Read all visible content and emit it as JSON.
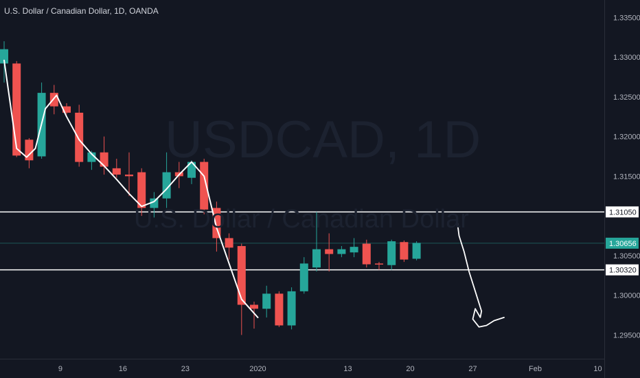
{
  "header": {
    "title": "U.S. Dollar / Canadian Dollar, 1D, OANDA",
    "watermark_symbol": "USDCAD, 1D",
    "watermark_name": "U.S. Dollar / Canadian Dollar"
  },
  "colors": {
    "background": "#131722",
    "up": "#26a69a",
    "down": "#ef5350",
    "text": "#b2b5be",
    "line": "#ffffff",
    "price_badge": "#26a69a"
  },
  "chart_data": {
    "type": "candlestick",
    "ylim": [
      1.292,
      1.3372
    ],
    "y_ticks": [
      "1.33500",
      "1.33000",
      "1.32500",
      "1.32000",
      "1.31500",
      "1.30500",
      "1.30000",
      "1.29500"
    ],
    "x_ticks": [
      {
        "label": "9",
        "i": 4.5
      },
      {
        "label": "16",
        "i": 9.5
      },
      {
        "label": "23",
        "i": 14.5
      },
      {
        "label": "2020",
        "i": 20.3
      },
      {
        "label": "13",
        "i": 27.5
      },
      {
        "label": "20",
        "i": 32.5
      },
      {
        "label": "27",
        "i": 37.5
      },
      {
        "label": "Feb",
        "i": 42.5
      },
      {
        "label": "10",
        "i": 47.5
      }
    ],
    "candles": [
      {
        "o": 1.3292,
        "h": 1.332,
        "l": 1.3268,
        "c": 1.331
      },
      {
        "o": 1.3292,
        "h": 1.3295,
        "l": 1.3174,
        "c": 1.3176
      },
      {
        "o": 1.3196,
        "h": 1.3198,
        "l": 1.316,
        "c": 1.317
      },
      {
        "o": 1.3175,
        "h": 1.3268,
        "l": 1.3172,
        "c": 1.3255
      },
      {
        "o": 1.3255,
        "h": 1.3265,
        "l": 1.3228,
        "c": 1.3238
      },
      {
        "o": 1.3238,
        "h": 1.3242,
        "l": 1.3228,
        "c": 1.323
      },
      {
        "o": 1.323,
        "h": 1.324,
        "l": 1.3162,
        "c": 1.3168
      },
      {
        "o": 1.3168,
        "h": 1.3182,
        "l": 1.3158,
        "c": 1.318
      },
      {
        "o": 1.318,
        "h": 1.32,
        "l": 1.3152,
        "c": 1.3162
      },
      {
        "o": 1.316,
        "h": 1.3172,
        "l": 1.3148,
        "c": 1.3152
      },
      {
        "o": 1.3152,
        "h": 1.318,
        "l": 1.3125,
        "c": 1.315
      },
      {
        "o": 1.3155,
        "h": 1.316,
        "l": 1.31,
        "c": 1.311
      },
      {
        "o": 1.311,
        "h": 1.313,
        "l": 1.3098,
        "c": 1.3122
      },
      {
        "o": 1.3122,
        "h": 1.318,
        "l": 1.311,
        "c": 1.3155
      },
      {
        "o": 1.3155,
        "h": 1.3168,
        "l": 1.3135,
        "c": 1.315
      },
      {
        "o": 1.3148,
        "h": 1.317,
        "l": 1.314,
        "c": 1.3168
      },
      {
        "o": 1.3168,
        "h": 1.3172,
        "l": 1.3102,
        "c": 1.3108
      },
      {
        "o": 1.311,
        "h": 1.3118,
        "l": 1.3055,
        "c": 1.3072
      },
      {
        "o": 1.3072,
        "h": 1.3078,
        "l": 1.3045,
        "c": 1.306
      },
      {
        "o": 1.3062,
        "h": 1.3065,
        "l": 1.295,
        "c": 1.2988
      },
      {
        "o": 1.2988,
        "h": 1.2992,
        "l": 1.2958,
        "c": 1.2983
      },
      {
        "o": 1.2983,
        "h": 1.3012,
        "l": 1.2972,
        "c": 1.3002
      },
      {
        "o": 1.3002,
        "h": 1.3005,
        "l": 1.296,
        "c": 1.2962
      },
      {
        "o": 1.2962,
        "h": 1.301,
        "l": 1.2957,
        "c": 1.3005
      },
      {
        "o": 1.3005,
        "h": 1.3048,
        "l": 1.3002,
        "c": 1.304
      },
      {
        "o": 1.3035,
        "h": 1.3105,
        "l": 1.303,
        "c": 1.3058
      },
      {
        "o": 1.3058,
        "h": 1.3078,
        "l": 1.303,
        "c": 1.3052
      },
      {
        "o": 1.3052,
        "h": 1.3062,
        "l": 1.3048,
        "c": 1.3058
      },
      {
        "o": 1.3054,
        "h": 1.3072,
        "l": 1.3048,
        "c": 1.3061
      },
      {
        "o": 1.3065,
        "h": 1.307,
        "l": 1.3035,
        "c": 1.3039
      },
      {
        "o": 1.304,
        "h": 1.3042,
        "l": 1.3032,
        "c": 1.3039
      },
      {
        "o": 1.3038,
        "h": 1.307,
        "l": 1.3032,
        "c": 1.3068
      },
      {
        "o": 1.3067,
        "h": 1.3069,
        "l": 1.3042,
        "c": 1.3045
      },
      {
        "o": 1.3046,
        "h": 1.3068,
        "l": 1.3044,
        "c": 1.3066
      }
    ],
    "horizontal_levels": [
      {
        "price": 1.3105,
        "label": "1.31050",
        "color": "#ffffff"
      },
      {
        "price": 1.3032,
        "label": "1.30320",
        "color": "#ffffff"
      }
    ],
    "last_price": {
      "price": 1.30656,
      "label": "1.30656"
    },
    "ma_line": [
      [
        0,
        1.3296
      ],
      [
        1,
        1.3185
      ],
      [
        1.8,
        1.3174
      ],
      [
        2.5,
        1.3185
      ],
      [
        3.3,
        1.3235
      ],
      [
        4.2,
        1.3252
      ],
      [
        5,
        1.3225
      ],
      [
        6,
        1.3196
      ],
      [
        7,
        1.3178
      ],
      [
        8,
        1.3163
      ],
      [
        9,
        1.3146
      ],
      [
        10,
        1.3128
      ],
      [
        11,
        1.3112
      ],
      [
        12,
        1.3118
      ],
      [
        13,
        1.3134
      ],
      [
        14,
        1.3152
      ],
      [
        15,
        1.3168
      ],
      [
        16,
        1.315
      ],
      [
        17,
        1.3085
      ],
      [
        18,
        1.304
      ],
      [
        19,
        1.2995
      ],
      [
        20.3,
        1.2972
      ]
    ],
    "projection_line": [
      [
        36.2,
        1.31
      ],
      [
        36.4,
        1.3075
      ],
      [
        36.8,
        1.3055
      ],
      [
        37.2,
        1.303
      ],
      [
        37.7,
        1.3005
      ],
      [
        38.2,
        1.298
      ],
      [
        38.1,
        1.2972
      ],
      [
        37.7,
        1.2983
      ],
      [
        37.5,
        1.297
      ],
      [
        38.0,
        1.296
      ],
      [
        38.6,
        1.2962
      ],
      [
        39.2,
        1.2968
      ],
      [
        40,
        1.2972
      ]
    ]
  }
}
